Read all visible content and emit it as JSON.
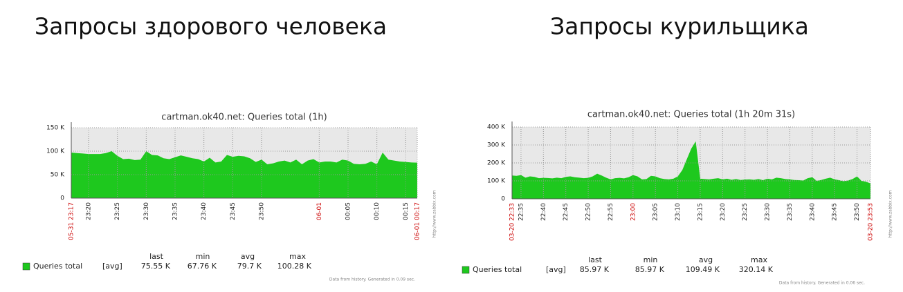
{
  "chart_data": [
    {
      "type": "area",
      "heading": "Запросы здорового человека",
      "title": "cartman.ok40.net: Queries total (1h)",
      "categories": [
        "05-31 23:17",
        null,
        null,
        "23:20",
        null,
        null,
        null,
        null,
        "23:25",
        null,
        null,
        null,
        null,
        "23:30",
        null,
        null,
        null,
        null,
        "23:35",
        null,
        null,
        null,
        null,
        "23:40",
        null,
        null,
        null,
        null,
        "23:45",
        null,
        null,
        null,
        null,
        "23:50",
        null,
        null,
        null,
        null,
        null,
        null,
        null,
        null,
        null,
        "06-01",
        null,
        null,
        null,
        null,
        "00:05",
        null,
        null,
        null,
        null,
        "00:10",
        null,
        null,
        null,
        null,
        "00:15",
        null,
        "06-01 00:17"
      ],
      "category_colors": [
        "#cc0000",
        null,
        null,
        null,
        null,
        null,
        null,
        null,
        null,
        null,
        null,
        null,
        null,
        null,
        null,
        null,
        null,
        null,
        null,
        null,
        null,
        null,
        null,
        null,
        null,
        null,
        null,
        null,
        null,
        null,
        null,
        null,
        null,
        null,
        null,
        null,
        null,
        null,
        null,
        null,
        null,
        null,
        null,
        "#cc0000",
        null,
        null,
        null,
        null,
        null,
        null,
        null,
        null,
        null,
        null,
        null,
        null,
        null,
        null,
        null,
        null,
        "#cc0000"
      ],
      "series": [
        {
          "name": "Queries total",
          "color": "#1ec81e",
          "values": [
            97000,
            96000,
            95000,
            94000,
            94000,
            94000,
            96000,
            100000,
            90000,
            83000,
            84000,
            81000,
            82000,
            100000,
            92000,
            91000,
            85000,
            83000,
            87000,
            91000,
            88000,
            85000,
            83000,
            78000,
            86000,
            76000,
            78000,
            92000,
            88000,
            90000,
            89000,
            85000,
            77000,
            82000,
            72000,
            74000,
            78000,
            80000,
            76000,
            82000,
            72000,
            80000,
            83000,
            76000,
            78000,
            78000,
            76000,
            82000,
            80000,
            73000,
            72000,
            73000,
            78000,
            72000,
            97000,
            82000,
            80000,
            78000,
            77000,
            76000,
            75550
          ]
        }
      ],
      "ylim": [
        0,
        150000
      ],
      "yticks": [
        0,
        {
          "value": 50000,
          "label": "50 K"
        },
        {
          "value": 100000,
          "label": "100 K"
        },
        {
          "value": 150000,
          "label": "150 K"
        }
      ],
      "grid": true,
      "legend": {
        "func": "[avg]",
        "columns": [
          "last",
          "min",
          "avg",
          "max"
        ],
        "stats": [
          "75.55 K",
          "67.76 K",
          "79.7 K",
          "100.28 K"
        ]
      },
      "watermark": "http://www.zabbix.com",
      "footer": "Data from history. Generated in 0.09 sec."
    },
    {
      "type": "area",
      "heading": "Запросы курильщика",
      "title": "cartman.ok40.net: Queries total (1h 20m 31s)",
      "categories": [
        "03-20 22:33",
        null,
        "22:35",
        null,
        null,
        null,
        null,
        "22:40",
        null,
        null,
        null,
        null,
        "22:45",
        null,
        null,
        null,
        null,
        "22:50",
        null,
        null,
        null,
        null,
        "22:55",
        null,
        null,
        null,
        null,
        "23:00",
        null,
        null,
        null,
        null,
        "23:05",
        null,
        null,
        null,
        null,
        "23:10",
        null,
        null,
        null,
        null,
        "23:15",
        null,
        null,
        null,
        null,
        "23:20",
        null,
        null,
        null,
        null,
        "23:25",
        null,
        null,
        null,
        null,
        "23:30",
        null,
        null,
        null,
        null,
        "23:35",
        null,
        null,
        null,
        null,
        "23:40",
        null,
        null,
        null,
        null,
        "23:45",
        null,
        null,
        null,
        null,
        "23:50",
        null,
        null,
        "03-20 23:53"
      ],
      "category_colors": [
        "#cc0000",
        null,
        null,
        null,
        null,
        null,
        null,
        null,
        null,
        null,
        null,
        null,
        null,
        null,
        null,
        null,
        null,
        null,
        null,
        null,
        null,
        null,
        null,
        null,
        null,
        null,
        null,
        "#cc0000",
        null,
        null,
        null,
        null,
        null,
        null,
        null,
        null,
        null,
        null,
        null,
        null,
        null,
        null,
        null,
        null,
        null,
        null,
        null,
        null,
        null,
        null,
        null,
        null,
        null,
        null,
        null,
        null,
        null,
        null,
        null,
        null,
        null,
        null,
        null,
        null,
        null,
        null,
        null,
        null,
        null,
        null,
        null,
        null,
        null,
        null,
        null,
        null,
        null,
        null,
        null,
        null,
        "#cc0000"
      ],
      "series": [
        {
          "name": "Queries total",
          "color": "#1ec81e",
          "values": [
            130000,
            128000,
            132000,
            118000,
            125000,
            122000,
            115000,
            117000,
            116000,
            114000,
            118000,
            115000,
            122000,
            125000,
            120000,
            118000,
            115000,
            117000,
            125000,
            140000,
            130000,
            118000,
            108000,
            115000,
            117000,
            114000,
            120000,
            132000,
            125000,
            108000,
            110000,
            128000,
            125000,
            115000,
            110000,
            108000,
            112000,
            125000,
            160000,
            220000,
            280000,
            320000,
            112000,
            110000,
            108000,
            112000,
            115000,
            108000,
            112000,
            106000,
            110000,
            105000,
            107000,
            108000,
            106000,
            110000,
            104000,
            112000,
            108000,
            118000,
            115000,
            110000,
            108000,
            105000,
            104000,
            102000,
            115000,
            120000,
            100000,
            105000,
            112000,
            118000,
            108000,
            104000,
            98000,
            102000,
            110000,
            125000,
            100000,
            95000,
            85970
          ]
        }
      ],
      "ylim": [
        0,
        400000
      ],
      "yticks": [
        0,
        {
          "value": 100000,
          "label": "100 K"
        },
        {
          "value": 200000,
          "label": "200 K"
        },
        {
          "value": 300000,
          "label": "300 K"
        },
        {
          "value": 400000,
          "label": "400 K"
        }
      ],
      "grid": true,
      "legend": {
        "func": "[avg]",
        "columns": [
          "last",
          "min",
          "avg",
          "max"
        ],
        "stats": [
          "85.97 K",
          "85.97 K",
          "109.49 K",
          "320.14 K"
        ]
      },
      "watermark": "http://www.zabbix.com",
      "footer": "Data from history. Generated in 0.06 sec."
    }
  ]
}
